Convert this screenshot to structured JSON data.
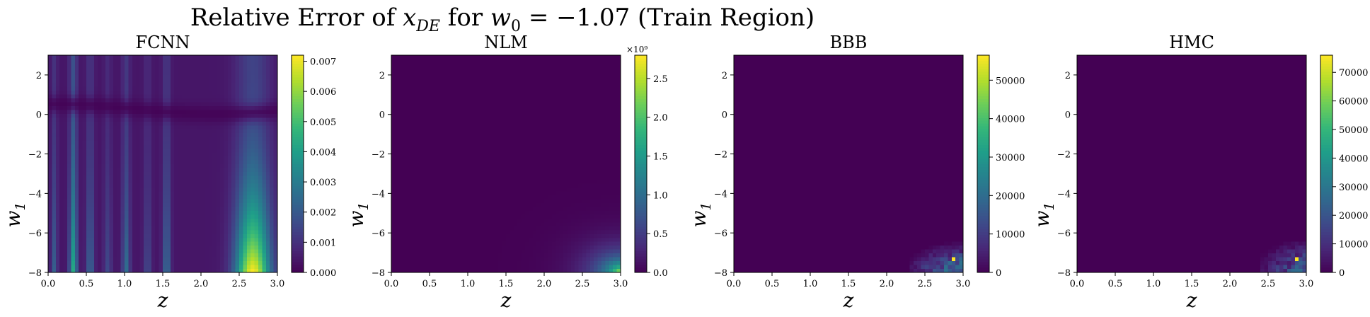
{
  "figure": {
    "title_prefix": "Relative Error of ",
    "title_var": "x",
    "title_var_sub": "DE",
    "title_mid": " for ",
    "title_w": "w",
    "title_w_sub": "0",
    "title_suffix": " = −1.07 (Train Region)"
  },
  "colormap": [
    "#440154",
    "#482878",
    "#3e4989",
    "#31688e",
    "#26828e",
    "#1f9e89",
    "#35b779",
    "#6ece58",
    "#b5de2b",
    "#fde725"
  ],
  "chart_data": [
    {
      "type": "heatmap",
      "title": "FCNN",
      "xlabel": "z",
      "ylabel_var": "w",
      "ylabel_sub": "1",
      "xlim": [
        0.0,
        3.0
      ],
      "ylim": [
        -8,
        3
      ],
      "xticks": [
        "0.0",
        "0.5",
        "1.0",
        "1.5",
        "2.0",
        "2.5",
        "3.0"
      ],
      "yticks": [
        "−8",
        "−6",
        "−4",
        "−2",
        "0",
        "2"
      ],
      "colorbar_range": [
        0,
        0.0072
      ],
      "colorbar_ticks": [
        "0.000",
        "0.001",
        "0.002",
        "0.003",
        "0.004",
        "0.005",
        "0.006",
        "0.007"
      ],
      "colorbar_multiplier": "",
      "pattern": "fcnn"
    },
    {
      "type": "heatmap",
      "title": "NLM",
      "xlabel": "z",
      "ylabel_var": "w",
      "ylabel_sub": "1",
      "xlim": [
        0.0,
        3.0
      ],
      "ylim": [
        -8,
        3
      ],
      "xticks": [
        "0.0",
        "0.5",
        "1.0",
        "1.5",
        "2.0",
        "2.5",
        "3.0"
      ],
      "yticks": [
        "−8",
        "−6",
        "−4",
        "−2",
        "0",
        "2"
      ],
      "colorbar_range": [
        0,
        2.8
      ],
      "colorbar_ticks": [
        "0.0",
        "0.5",
        "1.0",
        "1.5",
        "2.0",
        "2.5"
      ],
      "colorbar_multiplier": "×10⁹",
      "pattern": "nlm"
    },
    {
      "type": "heatmap",
      "title": "BBB",
      "xlabel": "z",
      "ylabel_var": "w",
      "ylabel_sub": "1",
      "xlim": [
        0.0,
        3.0
      ],
      "ylim": [
        -8,
        3
      ],
      "xticks": [
        "0.0",
        "0.5",
        "1.0",
        "1.5",
        "2.0",
        "2.5",
        "3.0"
      ],
      "yticks": [
        "−8",
        "−6",
        "−4",
        "−2",
        "0",
        "2"
      ],
      "colorbar_range": [
        0,
        56500
      ],
      "colorbar_ticks": [
        "0",
        "10000",
        "20000",
        "30000",
        "40000",
        "50000"
      ],
      "colorbar_multiplier": "",
      "pattern": "bbb"
    },
    {
      "type": "heatmap",
      "title": "HMC",
      "xlabel": "z",
      "ylabel_var": "w",
      "ylabel_sub": "1",
      "xlim": [
        0.0,
        3.0
      ],
      "ylim": [
        -8,
        3
      ],
      "xticks": [
        "0.0",
        "0.5",
        "1.0",
        "1.5",
        "2.0",
        "2.5",
        "3.0"
      ],
      "yticks": [
        "−8",
        "−6",
        "−4",
        "−2",
        "0",
        "2"
      ],
      "colorbar_range": [
        0,
        76000
      ],
      "colorbar_ticks": [
        "0",
        "10000",
        "20000",
        "30000",
        "40000",
        "50000",
        "60000",
        "70000"
      ],
      "colorbar_multiplier": "",
      "pattern": "hmc"
    }
  ]
}
